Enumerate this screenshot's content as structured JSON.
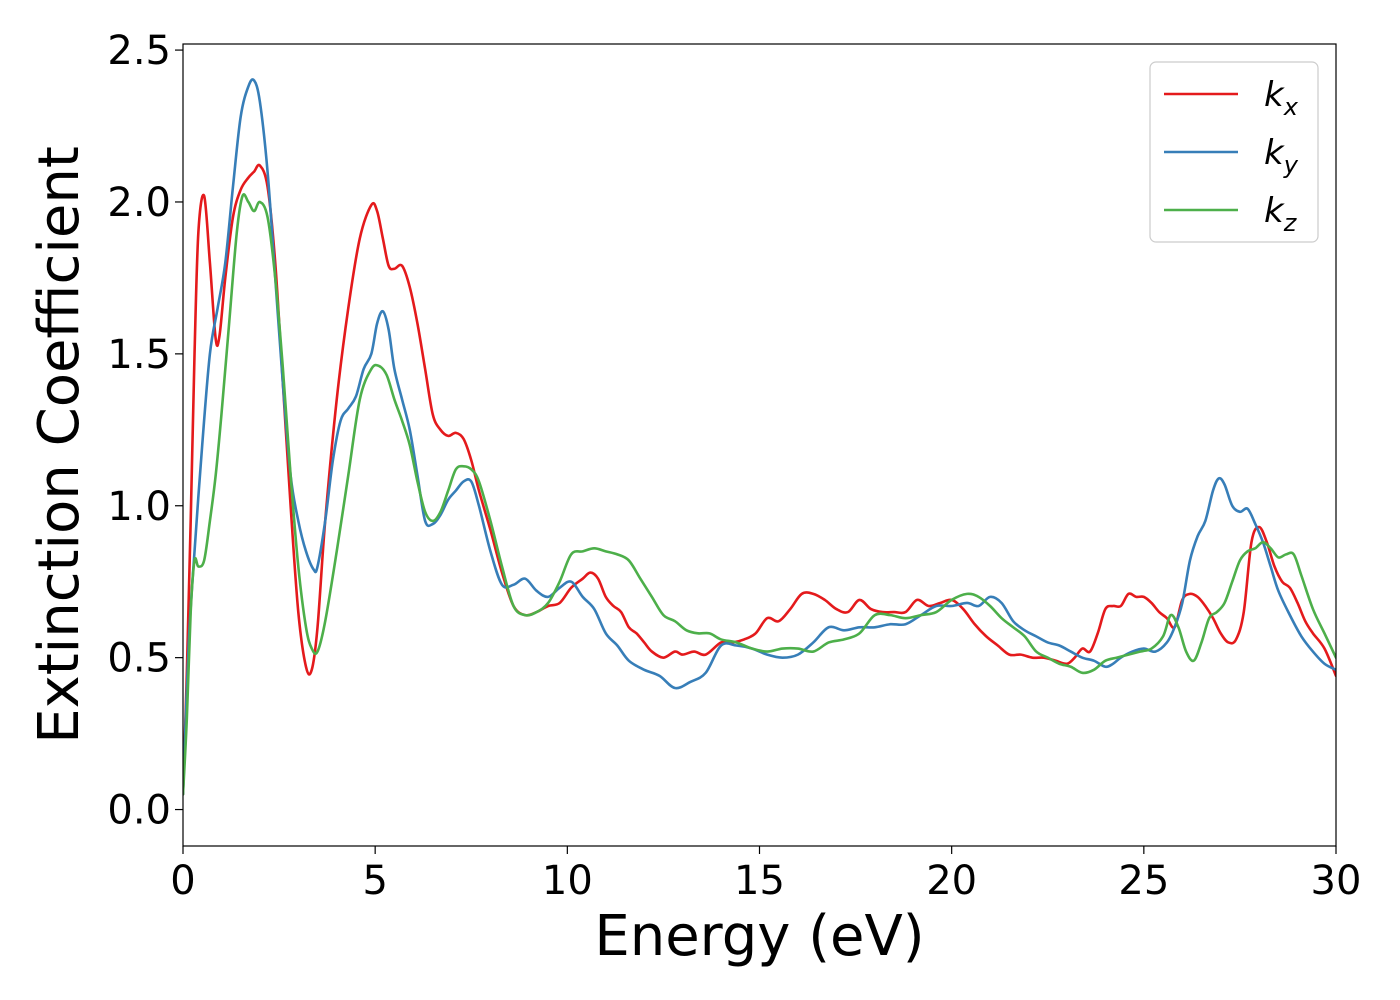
{
  "chart_data": {
    "type": "line",
    "title": "",
    "xlabel": "Energy (eV)",
    "ylabel": "Extinction Coefficient",
    "xlim": [
      0,
      30
    ],
    "ylim": [
      -0.12,
      2.52
    ],
    "xticks": [
      0,
      5,
      10,
      15,
      20,
      25,
      30
    ],
    "xtick_labels": [
      "0",
      "5",
      "10",
      "15",
      "20",
      "25",
      "30"
    ],
    "yticks": [
      0.0,
      0.5,
      1.0,
      1.5,
      2.0,
      2.5
    ],
    "ytick_labels": [
      "0.0",
      "0.5",
      "1.0",
      "1.5",
      "2.0",
      "2.5"
    ],
    "grid": false,
    "legend_position": "top-right",
    "series": [
      {
        "name": "k",
        "subscript": "x",
        "color": "#e41a1c",
        "x": [
          0,
          0.1,
          0.2,
          0.3,
          0.4,
          0.55,
          0.7,
          0.85,
          0.95,
          1.1,
          1.3,
          1.5,
          1.7,
          1.85,
          2.0,
          2.2,
          2.4,
          2.6,
          2.8,
          3.0,
          3.2,
          3.35,
          3.5,
          3.7,
          4.0,
          4.3,
          4.6,
          4.9,
          5.05,
          5.2,
          5.35,
          5.5,
          5.7,
          5.9,
          6.1,
          6.3,
          6.5,
          6.7,
          6.9,
          7.1,
          7.3,
          7.5,
          7.7,
          8.0,
          8.3,
          8.6,
          8.9,
          9.2,
          9.5,
          9.8,
          10.1,
          10.4,
          10.6,
          10.8,
          11.0,
          11.2,
          11.4,
          11.6,
          11.8,
          12.0,
          12.2,
          12.5,
          12.8,
          13.0,
          13.3,
          13.6,
          14.0,
          14.3,
          14.6,
          14.9,
          15.2,
          15.5,
          15.8,
          16.1,
          16.4,
          16.7,
          17.0,
          17.3,
          17.6,
          17.9,
          18.2,
          18.5,
          18.8,
          19.1,
          19.4,
          19.7,
          20.0,
          20.3,
          20.6,
          20.9,
          21.2,
          21.5,
          21.8,
          22.1,
          22.4,
          22.7,
          23.0,
          23.2,
          23.4,
          23.6,
          23.8,
          24.0,
          24.2,
          24.4,
          24.6,
          24.8,
          25.0,
          25.2,
          25.4,
          25.6,
          25.8,
          26.0,
          26.2,
          26.4,
          26.6,
          26.8,
          27.0,
          27.2,
          27.4,
          27.6,
          27.8,
          28.0,
          28.2,
          28.4,
          28.6,
          28.8,
          29.0,
          29.2,
          29.4,
          29.7,
          30.0
        ],
        "values": [
          0.05,
          0.45,
          0.95,
          1.5,
          1.9,
          2.02,
          1.8,
          1.55,
          1.56,
          1.75,
          1.95,
          2.04,
          2.08,
          2.1,
          2.12,
          2.05,
          1.8,
          1.4,
          1.0,
          0.65,
          0.47,
          0.46,
          0.6,
          0.95,
          1.35,
          1.65,
          1.88,
          1.99,
          1.97,
          1.88,
          1.79,
          1.78,
          1.79,
          1.72,
          1.6,
          1.45,
          1.3,
          1.25,
          1.23,
          1.24,
          1.22,
          1.15,
          1.05,
          0.92,
          0.78,
          0.67,
          0.64,
          0.65,
          0.67,
          0.68,
          0.73,
          0.76,
          0.78,
          0.76,
          0.7,
          0.67,
          0.65,
          0.6,
          0.58,
          0.55,
          0.52,
          0.5,
          0.52,
          0.51,
          0.52,
          0.51,
          0.55,
          0.55,
          0.56,
          0.58,
          0.63,
          0.62,
          0.66,
          0.71,
          0.71,
          0.69,
          0.66,
          0.65,
          0.69,
          0.66,
          0.65,
          0.65,
          0.65,
          0.69,
          0.67,
          0.68,
          0.69,
          0.66,
          0.61,
          0.57,
          0.54,
          0.51,
          0.51,
          0.5,
          0.5,
          0.49,
          0.48,
          0.5,
          0.53,
          0.52,
          0.58,
          0.66,
          0.67,
          0.67,
          0.71,
          0.7,
          0.7,
          0.68,
          0.65,
          0.63,
          0.6,
          0.69,
          0.71,
          0.7,
          0.67,
          0.63,
          0.58,
          0.55,
          0.56,
          0.65,
          0.88,
          0.93,
          0.88,
          0.8,
          0.75,
          0.73,
          0.68,
          0.62,
          0.58,
          0.53,
          0.44
        ]
      },
      {
        "name": "k",
        "subscript": "y",
        "color": "#377eb8",
        "x": [
          0,
          0.15,
          0.3,
          0.5,
          0.7,
          0.9,
          1.1,
          1.3,
          1.5,
          1.7,
          1.85,
          2.0,
          2.2,
          2.4,
          2.6,
          2.8,
          3.0,
          3.2,
          3.4,
          3.5,
          3.7,
          3.9,
          4.1,
          4.3,
          4.5,
          4.7,
          4.9,
          5.05,
          5.2,
          5.35,
          5.5,
          5.7,
          5.9,
          6.1,
          6.3,
          6.5,
          6.7,
          6.9,
          7.1,
          7.3,
          7.5,
          7.7,
          8.0,
          8.3,
          8.6,
          8.9,
          9.2,
          9.5,
          9.8,
          10.1,
          10.4,
          10.7,
          11.0,
          11.3,
          11.6,
          12.0,
          12.4,
          12.8,
          13.2,
          13.6,
          14.0,
          14.4,
          14.8,
          15.2,
          15.6,
          16.0,
          16.4,
          16.8,
          17.2,
          17.6,
          18.0,
          18.4,
          18.8,
          19.2,
          19.6,
          20.0,
          20.4,
          20.7,
          21.0,
          21.3,
          21.6,
          21.9,
          22.2,
          22.5,
          22.8,
          23.1,
          23.4,
          23.7,
          24.0,
          24.2,
          24.4,
          24.7,
          25.0,
          25.3,
          25.6,
          25.8,
          26.0,
          26.2,
          26.4,
          26.6,
          26.8,
          26.95,
          27.1,
          27.3,
          27.5,
          27.7,
          27.9,
          28.1,
          28.3,
          28.5,
          28.8,
          29.1,
          29.4,
          29.7,
          30.0
        ],
        "values": [
          0.05,
          0.55,
          0.85,
          1.2,
          1.5,
          1.65,
          1.8,
          2.05,
          2.28,
          2.38,
          2.4,
          2.33,
          2.1,
          1.75,
          1.4,
          1.1,
          0.95,
          0.85,
          0.79,
          0.8,
          0.95,
          1.15,
          1.28,
          1.32,
          1.36,
          1.45,
          1.5,
          1.6,
          1.64,
          1.58,
          1.45,
          1.35,
          1.25,
          1.1,
          0.95,
          0.94,
          0.97,
          1.02,
          1.05,
          1.08,
          1.08,
          1.0,
          0.85,
          0.74,
          0.74,
          0.76,
          0.72,
          0.7,
          0.73,
          0.75,
          0.7,
          0.66,
          0.58,
          0.54,
          0.49,
          0.46,
          0.44,
          0.4,
          0.42,
          0.45,
          0.54,
          0.54,
          0.53,
          0.51,
          0.5,
          0.51,
          0.55,
          0.6,
          0.59,
          0.6,
          0.6,
          0.61,
          0.61,
          0.64,
          0.67,
          0.67,
          0.68,
          0.67,
          0.7,
          0.68,
          0.62,
          0.59,
          0.57,
          0.55,
          0.54,
          0.52,
          0.5,
          0.49,
          0.47,
          0.48,
          0.5,
          0.52,
          0.53,
          0.52,
          0.55,
          0.6,
          0.68,
          0.82,
          0.9,
          0.95,
          1.05,
          1.09,
          1.07,
          1.0,
          0.98,
          0.99,
          0.94,
          0.88,
          0.8,
          0.72,
          0.64,
          0.57,
          0.52,
          0.48,
          0.46
        ]
      },
      {
        "name": "k",
        "subscript": "z",
        "color": "#4daf4a",
        "x": [
          0,
          0.1,
          0.2,
          0.3,
          0.4,
          0.55,
          0.7,
          0.85,
          1.0,
          1.2,
          1.4,
          1.55,
          1.7,
          1.85,
          2.0,
          2.2,
          2.4,
          2.6,
          2.8,
          3.0,
          3.2,
          3.35,
          3.5,
          3.7,
          4.0,
          4.3,
          4.6,
          4.9,
          5.1,
          5.3,
          5.5,
          5.7,
          5.9,
          6.1,
          6.3,
          6.5,
          6.7,
          6.9,
          7.1,
          7.3,
          7.5,
          7.7,
          8.0,
          8.3,
          8.6,
          8.9,
          9.2,
          9.5,
          9.8,
          10.1,
          10.4,
          10.7,
          11.0,
          11.3,
          11.6,
          11.9,
          12.2,
          12.5,
          12.8,
          13.1,
          13.4,
          13.7,
          14.0,
          14.4,
          14.8,
          15.2,
          15.6,
          16.0,
          16.4,
          16.8,
          17.2,
          17.6,
          18.0,
          18.4,
          18.8,
          19.2,
          19.6,
          20.0,
          20.4,
          20.7,
          21.0,
          21.3,
          21.6,
          21.9,
          22.2,
          22.5,
          22.8,
          23.1,
          23.4,
          23.7,
          24.0,
          24.3,
          24.6,
          24.9,
          25.2,
          25.5,
          25.7,
          25.9,
          26.1,
          26.3,
          26.5,
          26.7,
          26.9,
          27.1,
          27.3,
          27.5,
          27.7,
          27.9,
          28.1,
          28.3,
          28.5,
          28.7,
          28.9,
          29.1,
          29.4,
          29.7,
          30.0
        ],
        "values": [
          0.05,
          0.3,
          0.65,
          0.82,
          0.8,
          0.82,
          0.95,
          1.1,
          1.3,
          1.6,
          1.9,
          2.02,
          2.0,
          1.97,
          2.0,
          1.95,
          1.75,
          1.45,
          1.1,
          0.8,
          0.6,
          0.53,
          0.52,
          0.62,
          0.85,
          1.1,
          1.35,
          1.45,
          1.46,
          1.43,
          1.35,
          1.28,
          1.2,
          1.08,
          0.98,
          0.95,
          0.98,
          1.05,
          1.12,
          1.13,
          1.12,
          1.08,
          0.95,
          0.8,
          0.67,
          0.64,
          0.65,
          0.68,
          0.75,
          0.84,
          0.85,
          0.86,
          0.85,
          0.84,
          0.82,
          0.76,
          0.7,
          0.64,
          0.62,
          0.59,
          0.58,
          0.58,
          0.56,
          0.55,
          0.53,
          0.52,
          0.53,
          0.53,
          0.52,
          0.55,
          0.56,
          0.58,
          0.64,
          0.64,
          0.63,
          0.64,
          0.65,
          0.69,
          0.71,
          0.7,
          0.67,
          0.63,
          0.6,
          0.57,
          0.52,
          0.5,
          0.48,
          0.47,
          0.45,
          0.46,
          0.49,
          0.5,
          0.51,
          0.52,
          0.53,
          0.57,
          0.64,
          0.6,
          0.52,
          0.49,
          0.55,
          0.63,
          0.65,
          0.68,
          0.75,
          0.82,
          0.85,
          0.86,
          0.88,
          0.86,
          0.83,
          0.84,
          0.84,
          0.77,
          0.66,
          0.58,
          0.5
        ]
      }
    ]
  }
}
